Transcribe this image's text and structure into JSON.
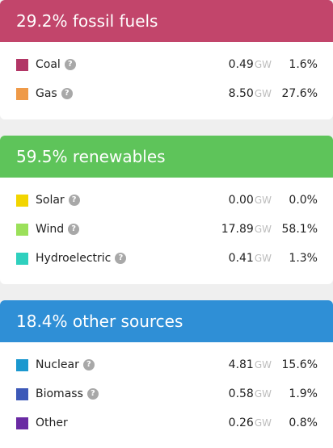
{
  "sections": [
    {
      "title": "29.2% fossil fuels",
      "color": "#c2456b",
      "rows": [
        {
          "label": "Coal",
          "value": "0.49",
          "unit": "GW",
          "pct": "1.6%",
          "swatch": "#b23666"
        },
        {
          "label": "Gas",
          "value": "8.50",
          "unit": "GW",
          "pct": "27.6%",
          "swatch": "#ef9a48"
        }
      ]
    },
    {
      "title": "59.5% renewables",
      "color": "#5ec45a",
      "rows": [
        {
          "label": "Solar",
          "value": "0.00",
          "unit": "GW",
          "pct": "0.0%",
          "swatch": "#f2d500"
        },
        {
          "label": "Wind",
          "value": "17.89",
          "unit": "GW",
          "pct": "58.1%",
          "swatch": "#9be05a"
        },
        {
          "label": "Hydroelectric",
          "value": "0.41",
          "unit": "GW",
          "pct": "1.3%",
          "swatch": "#2fd0be"
        }
      ]
    },
    {
      "title": "18.4% other sources",
      "color": "#2f8fd6",
      "rows": [
        {
          "label": "Nuclear",
          "value": "4.81",
          "unit": "GW",
          "pct": "15.6%",
          "swatch": "#1b98cf"
        },
        {
          "label": "Biomass",
          "value": "0.58",
          "unit": "GW",
          "pct": "1.9%",
          "swatch": "#3d59b8"
        },
        {
          "label": "Other",
          "value": "0.26",
          "unit": "GW",
          "pct": "0.8%",
          "swatch": "#6a2aa3"
        }
      ]
    }
  ],
  "help_glyph": "?"
}
